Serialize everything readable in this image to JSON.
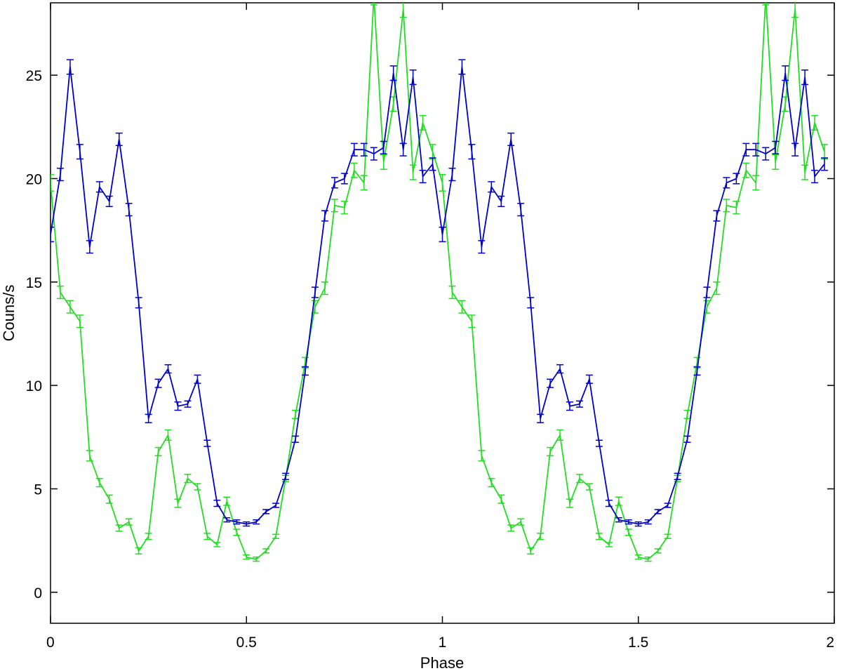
{
  "chart_data": {
    "type": "line",
    "title": "",
    "xlabel": "Phase",
    "ylabel": "Couns/s",
    "xlim": [
      0,
      2
    ],
    "ylim": [
      -1.5,
      28.5
    ],
    "xticks": [
      0,
      0.5,
      1,
      1.5,
      2
    ],
    "xtick_labels": [
      "0",
      "0.5",
      "1",
      "1.5",
      "2"
    ],
    "yticks": [
      0,
      5,
      10,
      15,
      20,
      25
    ],
    "ytick_labels": [
      "0",
      "5",
      "10",
      "15",
      "20",
      "25"
    ],
    "grid": false,
    "legend": "none",
    "x": [
      0,
      0.025,
      0.05,
      0.075,
      0.1,
      0.125,
      0.15,
      0.175,
      0.2,
      0.225,
      0.25,
      0.275,
      0.3,
      0.325,
      0.35,
      0.375,
      0.4,
      0.425,
      0.45,
      0.475,
      0.5,
      0.525,
      0.55,
      0.575,
      0.6,
      0.625,
      0.65,
      0.675,
      0.7,
      0.725,
      0.75,
      0.775,
      0.8,
      0.825,
      0.85,
      0.875,
      0.9,
      0.925,
      0.95,
      0.975,
      1.0,
      1.025,
      1.05,
      1.075,
      1.1,
      1.125,
      1.15,
      1.175,
      1.2,
      1.225,
      1.25,
      1.275,
      1.3,
      1.325,
      1.35,
      1.375,
      1.4,
      1.425,
      1.45,
      1.475,
      1.5,
      1.525,
      1.55,
      1.575,
      1.6,
      1.625,
      1.65,
      1.675,
      1.7,
      1.725,
      1.75,
      1.775,
      1.8,
      1.825,
      1.85,
      1.875,
      1.9,
      1.925,
      1.95,
      1.975
    ],
    "series": [
      {
        "color": "#0000cc",
        "values": [
          17.3,
          20.2,
          25.4,
          21.3,
          16.7,
          19.6,
          18.9,
          21.9,
          18.5,
          14.0,
          8.4,
          10.1,
          10.8,
          9.0,
          9.1,
          10.3,
          7.2,
          4.3,
          3.5,
          3.4,
          3.3,
          3.4,
          3.9,
          4.2,
          5.6,
          7.4,
          10.7,
          14.5,
          18.2,
          19.8,
          20.0,
          21.4,
          21.4,
          21.2,
          21.5,
          25.1,
          21.4,
          24.9,
          20.1,
          20.7,
          17.3,
          20.2,
          25.4,
          21.3,
          16.7,
          19.6,
          18.9,
          21.9,
          18.5,
          14.0,
          8.4,
          10.1,
          10.8,
          9.0,
          9.1,
          10.3,
          7.2,
          4.3,
          3.5,
          3.4,
          3.3,
          3.4,
          3.9,
          4.2,
          5.6,
          7.4,
          10.7,
          14.5,
          18.2,
          19.8,
          20.0,
          21.4,
          21.4,
          21.2,
          21.5,
          25.1,
          21.4,
          24.9,
          20.1,
          20.7
        ],
        "errors": [
          0.35,
          0.3,
          0.35,
          0.35,
          0.3,
          0.25,
          0.25,
          0.3,
          0.3,
          0.25,
          0.2,
          0.2,
          0.2,
          0.2,
          0.15,
          0.2,
          0.15,
          0.15,
          0.1,
          0.1,
          0.1,
          0.1,
          0.1,
          0.1,
          0.15,
          0.15,
          0.2,
          0.25,
          0.25,
          0.25,
          0.25,
          0.3,
          0.3,
          0.3,
          0.3,
          0.35,
          0.3,
          0.35,
          0.3,
          0.3,
          0.35,
          0.3,
          0.35,
          0.35,
          0.3,
          0.25,
          0.25,
          0.3,
          0.3,
          0.25,
          0.2,
          0.2,
          0.2,
          0.2,
          0.15,
          0.2,
          0.15,
          0.15,
          0.1,
          0.1,
          0.1,
          0.1,
          0.1,
          0.1,
          0.15,
          0.15,
          0.2,
          0.25,
          0.25,
          0.25,
          0.25,
          0.3,
          0.3,
          0.3,
          0.3,
          0.35,
          0.3,
          0.35,
          0.3,
          0.3
        ]
      },
      {
        "color": "#22dd22",
        "values": [
          19.8,
          14.5,
          13.8,
          13.1,
          6.6,
          5.3,
          4.5,
          3.1,
          3.4,
          2.0,
          2.7,
          6.8,
          7.6,
          4.3,
          5.5,
          5.1,
          2.7,
          2.3,
          4.4,
          2.9,
          1.7,
          1.6,
          2.0,
          2.7,
          5.5,
          8.6,
          11.1,
          13.8,
          14.7,
          18.7,
          18.6,
          20.4,
          19.8,
          28.8,
          20.8,
          23.6,
          28.2,
          20.3,
          22.7,
          21.3,
          19.8,
          14.5,
          13.8,
          13.1,
          6.6,
          5.3,
          4.5,
          3.1,
          3.4,
          2.0,
          2.7,
          6.8,
          7.6,
          4.3,
          5.5,
          5.1,
          2.7,
          2.3,
          4.4,
          2.9,
          1.7,
          1.6,
          2.0,
          2.7,
          5.5,
          8.6,
          11.1,
          13.8,
          14.7,
          18.7,
          18.6,
          20.4,
          19.8,
          28.8,
          20.8,
          23.6,
          28.2,
          20.3,
          22.7,
          21.3
        ],
        "errors": [
          0.4,
          0.3,
          0.3,
          0.3,
          0.25,
          0.2,
          0.2,
          0.15,
          0.15,
          0.15,
          0.15,
          0.2,
          0.25,
          0.2,
          0.2,
          0.15,
          0.15,
          0.1,
          0.2,
          0.15,
          0.1,
          0.1,
          0.1,
          0.1,
          0.15,
          0.2,
          0.25,
          0.3,
          0.3,
          0.3,
          0.3,
          0.35,
          0.35,
          0.4,
          0.35,
          0.35,
          0.4,
          0.35,
          0.35,
          0.35,
          0.4,
          0.3,
          0.3,
          0.3,
          0.25,
          0.2,
          0.2,
          0.15,
          0.15,
          0.15,
          0.15,
          0.2,
          0.25,
          0.2,
          0.2,
          0.15,
          0.15,
          0.1,
          0.2,
          0.15,
          0.1,
          0.1,
          0.1,
          0.1,
          0.15,
          0.2,
          0.25,
          0.3,
          0.3,
          0.3,
          0.3,
          0.35,
          0.35,
          0.4,
          0.35,
          0.35,
          0.4,
          0.35,
          0.35,
          0.35
        ]
      }
    ]
  }
}
